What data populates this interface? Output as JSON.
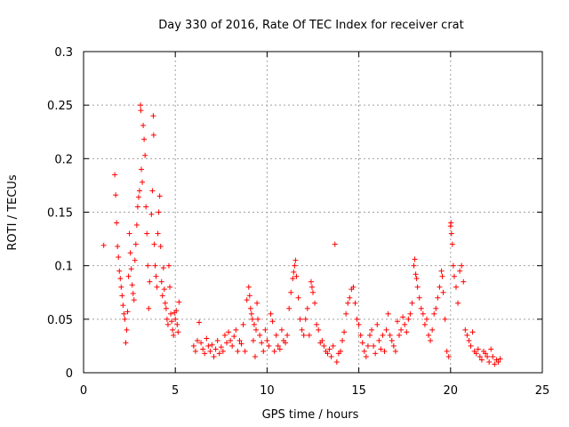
{
  "chart_data": {
    "type": "scatter",
    "title": "Day 330 of 2016, Rate Of TEC Index for receiver crat",
    "xlabel": "GPS time / hours",
    "ylabel": "ROTI / TECUs",
    "xlim": [
      0,
      25
    ],
    "ylim": [
      0,
      0.3
    ],
    "xticks": [
      0,
      5,
      10,
      15,
      20,
      25
    ],
    "yticks": [
      0,
      0.05,
      0.1,
      0.15,
      0.2,
      0.25,
      0.3
    ],
    "xtick_labels": [
      "0",
      "5",
      "10",
      "15",
      "20",
      "25"
    ],
    "ytick_labels": [
      "0",
      "0.05",
      "0.1",
      "0.15",
      "0.2",
      "0.25",
      "0.3"
    ],
    "grid": true,
    "marker": "+",
    "color": "#ff0000",
    "series": [
      {
        "points": [
          [
            1.1,
            0.119
          ],
          [
            1.7,
            0.185
          ],
          [
            1.75,
            0.166
          ],
          [
            1.8,
            0.14
          ],
          [
            1.85,
            0.118
          ],
          [
            1.9,
            0.108
          ],
          [
            1.95,
            0.095
          ],
          [
            2.0,
            0.088
          ],
          [
            2.05,
            0.08
          ],
          [
            2.1,
            0.072
          ],
          [
            2.15,
            0.063
          ],
          [
            2.2,
            0.055
          ],
          [
            2.25,
            0.05
          ],
          [
            2.3,
            0.028
          ],
          [
            2.35,
            0.04
          ],
          [
            2.4,
            0.057
          ],
          [
            2.45,
            0.09
          ],
          [
            2.5,
            0.13
          ],
          [
            2.55,
            0.112
          ],
          [
            2.6,
            0.097
          ],
          [
            2.65,
            0.082
          ],
          [
            2.7,
            0.074
          ],
          [
            2.75,
            0.068
          ],
          [
            2.8,
            0.105
          ],
          [
            2.85,
            0.12
          ],
          [
            2.9,
            0.138
          ],
          [
            2.95,
            0.155
          ],
          [
            3.0,
            0.164
          ],
          [
            3.05,
            0.17
          ],
          [
            3.1,
            0.25
          ],
          [
            3.12,
            0.245
          ],
          [
            3.15,
            0.19
          ],
          [
            3.2,
            0.178
          ],
          [
            3.25,
            0.231
          ],
          [
            3.3,
            0.218
          ],
          [
            3.35,
            0.203
          ],
          [
            3.4,
            0.155
          ],
          [
            3.45,
            0.13
          ],
          [
            3.5,
            0.1
          ],
          [
            3.55,
            0.06
          ],
          [
            3.6,
            0.085
          ],
          [
            3.7,
            0.148
          ],
          [
            3.75,
            0.17
          ],
          [
            3.8,
            0.24
          ],
          [
            3.82,
            0.222
          ],
          [
            3.85,
            0.12
          ],
          [
            3.9,
            0.1
          ],
          [
            3.95,
            0.09
          ],
          [
            4.0,
            0.08
          ],
          [
            4.05,
            0.13
          ],
          [
            4.1,
            0.15
          ],
          [
            4.15,
            0.165
          ],
          [
            4.2,
            0.118
          ],
          [
            4.25,
            0.085
          ],
          [
            4.3,
            0.072
          ],
          [
            4.35,
            0.098
          ],
          [
            4.4,
            0.078
          ],
          [
            4.45,
            0.065
          ],
          [
            4.5,
            0.06
          ],
          [
            4.55,
            0.05
          ],
          [
            4.6,
            0.045
          ],
          [
            4.65,
            0.1
          ],
          [
            4.7,
            0.08
          ],
          [
            4.75,
            0.055
          ],
          [
            4.8,
            0.048
          ],
          [
            4.85,
            0.04
          ],
          [
            4.9,
            0.035
          ],
          [
            4.95,
            0.056
          ],
          [
            5.0,
            0.05
          ],
          [
            5.05,
            0.058
          ],
          [
            5.1,
            0.045
          ],
          [
            5.15,
            0.038
          ],
          [
            5.2,
            0.066
          ],
          [
            6.0,
            0.025
          ],
          [
            6.1,
            0.02
          ],
          [
            6.2,
            0.03
          ],
          [
            6.3,
            0.047
          ],
          [
            6.4,
            0.028
          ],
          [
            6.5,
            0.022
          ],
          [
            6.6,
            0.018
          ],
          [
            6.7,
            0.032
          ],
          [
            6.8,
            0.025
          ],
          [
            6.9,
            0.02
          ],
          [
            7.0,
            0.026
          ],
          [
            7.1,
            0.015
          ],
          [
            7.2,
            0.022
          ],
          [
            7.3,
            0.03
          ],
          [
            7.4,
            0.018
          ],
          [
            7.5,
            0.024
          ],
          [
            7.6,
            0.02
          ],
          [
            7.7,
            0.035
          ],
          [
            7.8,
            0.028
          ],
          [
            7.9,
            0.038
          ],
          [
            8.0,
            0.03
          ],
          [
            8.1,
            0.025
          ],
          [
            8.2,
            0.034
          ],
          [
            8.3,
            0.04
          ],
          [
            8.4,
            0.02
          ],
          [
            8.5,
            0.03
          ],
          [
            8.6,
            0.027
          ],
          [
            8.7,
            0.045
          ],
          [
            8.8,
            0.02
          ],
          [
            8.9,
            0.068
          ],
          [
            9.0,
            0.08
          ],
          [
            9.05,
            0.072
          ],
          [
            9.1,
            0.06
          ],
          [
            9.15,
            0.055
          ],
          [
            9.2,
            0.05
          ],
          [
            9.25,
            0.03
          ],
          [
            9.3,
            0.045
          ],
          [
            9.35,
            0.015
          ],
          [
            9.4,
            0.04
          ],
          [
            9.45,
            0.065
          ],
          [
            9.5,
            0.05
          ],
          [
            9.6,
            0.035
          ],
          [
            9.7,
            0.028
          ],
          [
            9.8,
            0.02
          ],
          [
            9.9,
            0.04
          ],
          [
            10.0,
            0.03
          ],
          [
            10.1,
            0.025
          ],
          [
            10.2,
            0.055
          ],
          [
            10.3,
            0.048
          ],
          [
            10.4,
            0.02
          ],
          [
            10.5,
            0.035
          ],
          [
            10.6,
            0.025
          ],
          [
            10.7,
            0.022
          ],
          [
            10.8,
            0.04
          ],
          [
            10.9,
            0.03
          ],
          [
            11.0,
            0.028
          ],
          [
            11.1,
            0.035
          ],
          [
            11.2,
            0.06
          ],
          [
            11.3,
            0.075
          ],
          [
            11.4,
            0.088
          ],
          [
            11.45,
            0.094
          ],
          [
            11.5,
            0.1
          ],
          [
            11.55,
            0.105
          ],
          [
            11.6,
            0.09
          ],
          [
            11.7,
            0.07
          ],
          [
            11.8,
            0.05
          ],
          [
            11.9,
            0.04
          ],
          [
            12.0,
            0.035
          ],
          [
            12.1,
            0.05
          ],
          [
            12.2,
            0.06
          ],
          [
            12.3,
            0.035
          ],
          [
            12.4,
            0.085
          ],
          [
            12.45,
            0.08
          ],
          [
            12.5,
            0.075
          ],
          [
            12.6,
            0.065
          ],
          [
            12.7,
            0.045
          ],
          [
            12.8,
            0.04
          ],
          [
            12.9,
            0.028
          ],
          [
            13.0,
            0.03
          ],
          [
            13.1,
            0.025
          ],
          [
            13.2,
            0.02
          ],
          [
            13.3,
            0.018
          ],
          [
            13.4,
            0.022
          ],
          [
            13.5,
            0.015
          ],
          [
            13.6,
            0.025
          ],
          [
            13.7,
            0.12
          ],
          [
            13.8,
            0.01
          ],
          [
            13.9,
            0.018
          ],
          [
            14.0,
            0.02
          ],
          [
            14.1,
            0.03
          ],
          [
            14.2,
            0.038
          ],
          [
            14.3,
            0.055
          ],
          [
            14.4,
            0.065
          ],
          [
            14.5,
            0.07
          ],
          [
            14.6,
            0.078
          ],
          [
            14.7,
            0.08
          ],
          [
            14.8,
            0.065
          ],
          [
            14.9,
            0.05
          ],
          [
            15.0,
            0.045
          ],
          [
            15.1,
            0.035
          ],
          [
            15.2,
            0.028
          ],
          [
            15.3,
            0.02
          ],
          [
            15.4,
            0.015
          ],
          [
            15.5,
            0.025
          ],
          [
            15.6,
            0.035
          ],
          [
            15.7,
            0.04
          ],
          [
            15.8,
            0.025
          ],
          [
            15.9,
            0.018
          ],
          [
            16.0,
            0.045
          ],
          [
            16.1,
            0.03
          ],
          [
            16.2,
            0.022
          ],
          [
            16.3,
            0.035
          ],
          [
            16.4,
            0.02
          ],
          [
            16.5,
            0.04
          ],
          [
            16.6,
            0.055
          ],
          [
            16.7,
            0.035
          ],
          [
            16.8,
            0.03
          ],
          [
            16.9,
            0.025
          ],
          [
            17.0,
            0.02
          ],
          [
            17.1,
            0.048
          ],
          [
            17.2,
            0.035
          ],
          [
            17.3,
            0.04
          ],
          [
            17.4,
            0.052
          ],
          [
            17.5,
            0.045
          ],
          [
            17.6,
            0.038
          ],
          [
            17.7,
            0.05
          ],
          [
            17.8,
            0.055
          ],
          [
            17.9,
            0.065
          ],
          [
            18.0,
            0.1
          ],
          [
            18.05,
            0.106
          ],
          [
            18.1,
            0.092
          ],
          [
            18.15,
            0.088
          ],
          [
            18.2,
            0.08
          ],
          [
            18.3,
            0.07
          ],
          [
            18.4,
            0.06
          ],
          [
            18.5,
            0.055
          ],
          [
            18.6,
            0.045
          ],
          [
            18.7,
            0.05
          ],
          [
            18.8,
            0.035
          ],
          [
            18.9,
            0.03
          ],
          [
            19.0,
            0.04
          ],
          [
            19.1,
            0.055
          ],
          [
            19.2,
            0.06
          ],
          [
            19.3,
            0.07
          ],
          [
            19.4,
            0.08
          ],
          [
            19.5,
            0.095
          ],
          [
            19.55,
            0.09
          ],
          [
            19.6,
            0.075
          ],
          [
            19.7,
            0.05
          ],
          [
            19.8,
            0.02
          ],
          [
            19.9,
            0.015
          ],
          [
            20.0,
            0.137
          ],
          [
            20.02,
            0.14
          ],
          [
            20.05,
            0.13
          ],
          [
            20.1,
            0.12
          ],
          [
            20.15,
            0.1
          ],
          [
            20.2,
            0.09
          ],
          [
            20.3,
            0.08
          ],
          [
            20.4,
            0.065
          ],
          [
            20.5,
            0.095
          ],
          [
            20.6,
            0.1
          ],
          [
            20.7,
            0.085
          ],
          [
            20.8,
            0.04
          ],
          [
            20.9,
            0.035
          ],
          [
            21.0,
            0.03
          ],
          [
            21.1,
            0.025
          ],
          [
            21.2,
            0.038
          ],
          [
            21.3,
            0.02
          ],
          [
            21.4,
            0.018
          ],
          [
            21.5,
            0.022
          ],
          [
            21.6,
            0.015
          ],
          [
            21.7,
            0.012
          ],
          [
            21.8,
            0.02
          ],
          [
            21.9,
            0.018
          ],
          [
            22.0,
            0.015
          ],
          [
            22.1,
            0.01
          ],
          [
            22.2,
            0.022
          ],
          [
            22.3,
            0.015
          ],
          [
            22.4,
            0.008
          ],
          [
            22.5,
            0.012
          ],
          [
            22.6,
            0.01
          ],
          [
            22.7,
            0.013
          ]
        ]
      }
    ]
  }
}
